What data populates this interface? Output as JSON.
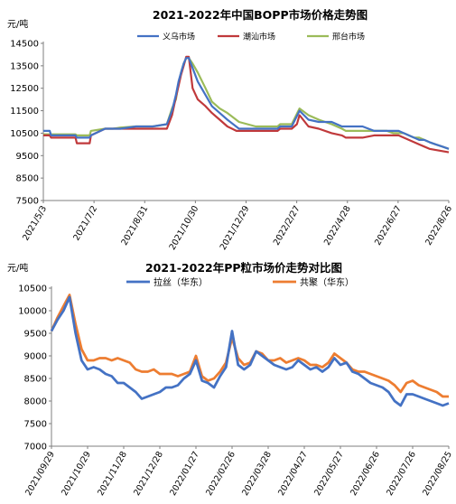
{
  "colors": {
    "yiwu": "#4472C4",
    "chaoshan": "#C0393B",
    "xingtai": "#9BBB59",
    "lasi": "#4472C4",
    "gongju": "#ED7D31",
    "axis": "#7f7f7f"
  },
  "chart_data": [
    {
      "type": "line",
      "title": "2021-2022年中国BOPP市场价格走势图",
      "unit": "元/吨",
      "ylim": [
        7500,
        14500
      ],
      "yticks": [
        "14500",
        "13500",
        "12500",
        "11500",
        "10500",
        "9500",
        "8500",
        "7500"
      ],
      "xticks": [
        "2021/5/3",
        "2021/7/2",
        "2021/8/31",
        "2021/10/30",
        "2021/12/29",
        "2022/2/27",
        "2022/4/28",
        "2022/6/27",
        "2022/8/26"
      ],
      "legend": [
        "义乌市场",
        "潮汕市场",
        "邢台市场"
      ],
      "series": [
        {
          "name": "义乌市场",
          "x": [
            0,
            5,
            6,
            15,
            16,
            25,
            26,
            36,
            37,
            48,
            54,
            60,
            72,
            85,
            96,
            100,
            103,
            105,
            107,
            109,
            111,
            113,
            116,
            120,
            126,
            131,
            137,
            143,
            152,
            165,
            178,
            182,
            184,
            186,
            188,
            190,
            193,
            199,
            206,
            214,
            224,
            232,
            235,
            240,
            248,
            257,
            267,
            272,
            276,
            280,
            284,
            288,
            292,
            296,
            300,
            305,
            310,
            315
          ],
          "y": [
            10600,
            10600,
            10400,
            10400,
            10400,
            10400,
            10300,
            10300,
            10400,
            10700,
            10700,
            10700,
            10800,
            10800,
            10900,
            11500,
            12200,
            12800,
            13200,
            13600,
            13850,
            13850,
            13400,
            12800,
            12200,
            11700,
            11400,
            11100,
            10700,
            10700,
            10700,
            10700,
            10800,
            10800,
            10800,
            10800,
            10800,
            11500,
            11100,
            11000,
            11000,
            10800,
            10800,
            10800,
            10800,
            10600,
            10600,
            10600,
            10600,
            10500,
            10400,
            10300,
            10200,
            10200,
            10100,
            10000,
            9900,
            9800
          ]
        },
        {
          "name": "潮汕市场",
          "x": [
            0,
            5,
            6,
            15,
            16,
            25,
            26,
            36,
            37,
            48,
            60,
            72,
            96,
            100,
            103,
            105,
            107,
            109,
            111,
            113,
            116,
            120,
            126,
            131,
            137,
            143,
            150,
            165,
            178,
            182,
            184,
            186,
            188,
            190,
            193,
            197,
            199,
            206,
            214,
            224,
            232,
            235,
            240,
            248,
            257,
            267,
            272,
            276,
            280,
            284,
            288,
            292,
            296,
            300,
            305,
            310,
            315
          ],
          "y": [
            10400,
            10400,
            10300,
            10300,
            10300,
            10300,
            10050,
            10050,
            10400,
            10700,
            10700,
            10700,
            10700,
            11300,
            12100,
            12600,
            13100,
            13500,
            13900,
            13900,
            12500,
            12000,
            11700,
            11400,
            11100,
            10800,
            10600,
            10600,
            10600,
            10600,
            10700,
            10700,
            10700,
            10700,
            10700,
            10900,
            11300,
            10800,
            10700,
            10500,
            10400,
            10300,
            10300,
            10300,
            10400,
            10400,
            10400,
            10400,
            10300,
            10200,
            10100,
            10000,
            9900,
            9800,
            9750,
            9700,
            9650
          ]
        },
        {
          "name": "邢台市场",
          "x": [
            0,
            5,
            6,
            15,
            16,
            25,
            26,
            36,
            37,
            48,
            54,
            60,
            72,
            85,
            96,
            100,
            103,
            105,
            107,
            109,
            111,
            113,
            116,
            120,
            126,
            131,
            137,
            143,
            152,
            165,
            178,
            182,
            184,
            186,
            188,
            190,
            193,
            199,
            206,
            214,
            224,
            232,
            235,
            240,
            248,
            257,
            267,
            272,
            276,
            280,
            284,
            288,
            292,
            296,
            300,
            305,
            310,
            315
          ],
          "y": [
            10450,
            10450,
            10450,
            10450,
            10450,
            10450,
            10400,
            10400,
            10600,
            10700,
            10700,
            10750,
            10800,
            10800,
            10900,
            11600,
            12000,
            12700,
            13200,
            13600,
            13850,
            13850,
            13600,
            13200,
            12500,
            11900,
            11600,
            11400,
            11000,
            10800,
            10800,
            10800,
            10900,
            10900,
            10900,
            10900,
            10900,
            11600,
            11300,
            11100,
            10900,
            10700,
            10600,
            10600,
            10600,
            10600,
            10600,
            10500,
            10500,
            10500,
            10400,
            10300,
            10300,
            10200,
            10100,
            10000,
            9900,
            9800
          ]
        }
      ]
    },
    {
      "type": "line",
      "title": "2021-2022年PP粒市场价走势对比图",
      "unit": "元/吨",
      "ylim": [
        7000,
        10500
      ],
      "yticks": [
        "10500",
        "10000",
        "9500",
        "9000",
        "8500",
        "8000",
        "7500",
        "7000"
      ],
      "xticks": [
        "2021/09/29",
        "2021/10/29",
        "2021/11/28",
        "2021/12/28",
        "2022/01/27",
        "2022/02/26",
        "2022/03/28",
        "2022/04/27",
        "2022/05/27",
        "2022/06/26",
        "2022/07/26",
        "2022/08/25"
      ],
      "legend": [
        "拉丝（华东）",
        "共聚（华东）"
      ],
      "series": [
        {
          "name": "拉丝（华东）",
          "x": [
            0,
            5,
            10,
            15,
            20,
            25,
            30,
            35,
            40,
            45,
            50,
            55,
            60,
            65,
            70,
            75,
            80,
            85,
            90,
            95,
            100,
            105,
            110,
            115,
            120,
            125,
            130,
            135,
            140,
            145,
            150,
            155,
            160,
            165,
            170,
            175,
            180,
            185,
            190,
            195,
            200,
            205,
            210,
            215,
            220,
            225,
            230,
            235,
            240,
            245,
            250,
            255,
            260,
            265,
            270,
            275,
            280,
            285,
            290,
            295,
            300,
            305,
            310,
            315,
            320,
            325,
            330
          ],
          "y": [
            9550,
            9800,
            10000,
            10300,
            9500,
            8900,
            8700,
            8750,
            8700,
            8600,
            8550,
            8400,
            8400,
            8300,
            8200,
            8050,
            8100,
            8150,
            8200,
            8300,
            8300,
            8350,
            8500,
            8600,
            8900,
            8450,
            8400,
            8300,
            8550,
            8750,
            9550,
            8800,
            8700,
            8800,
            9100,
            9000,
            8900,
            8800,
            8750,
            8700,
            8750,
            8900,
            8800,
            8700,
            8750,
            8650,
            8750,
            8950,
            8800,
            8850,
            8650,
            8600,
            8500,
            8400,
            8350,
            8300,
            8200,
            8000,
            7900,
            8150,
            8150,
            8100,
            8050,
            8000,
            7950,
            7900,
            7950
          ]
        },
        {
          "name": "共聚（华东）",
          "x": [
            0,
            5,
            10,
            15,
            20,
            25,
            30,
            35,
            40,
            45,
            50,
            55,
            60,
            65,
            70,
            75,
            80,
            85,
            90,
            95,
            100,
            105,
            110,
            115,
            120,
            125,
            130,
            135,
            140,
            145,
            150,
            155,
            160,
            165,
            170,
            175,
            180,
            185,
            190,
            195,
            200,
            205,
            210,
            215,
            220,
            225,
            230,
            235,
            240,
            245,
            250,
            255,
            260,
            265,
            270,
            275,
            280,
            285,
            290,
            295,
            300,
            305,
            310,
            315,
            320,
            325,
            330
          ],
          "y": [
            9550,
            9850,
            10100,
            10350,
            9700,
            9150,
            8900,
            8900,
            8950,
            8950,
            8900,
            8950,
            8900,
            8850,
            8700,
            8650,
            8650,
            8700,
            8600,
            8600,
            8600,
            8550,
            8600,
            8650,
            9000,
            8550,
            8450,
            8500,
            8650,
            8850,
            9400,
            8950,
            8800,
            8850,
            9100,
            9050,
            8900,
            8900,
            8950,
            8850,
            8900,
            8950,
            8900,
            8800,
            8800,
            8750,
            8850,
            9050,
            8950,
            8850,
            8700,
            8650,
            8650,
            8600,
            8550,
            8500,
            8450,
            8350,
            8200,
            8400,
            8450,
            8350,
            8300,
            8250,
            8200,
            8100,
            8100
          ]
        }
      ]
    }
  ]
}
